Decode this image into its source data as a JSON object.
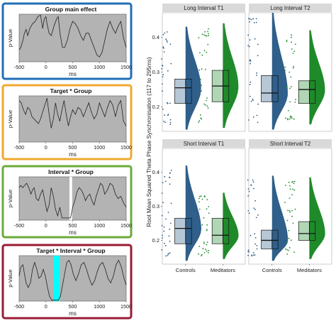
{
  "left_panels": [
    {
      "title": "Group main effect",
      "border_color": "#1f6fb5",
      "ylabel": "p-Value",
      "xlabel": "ms",
      "xticks": [
        "-500",
        "0",
        "500",
        "1000",
        "1500"
      ],
      "curve_x": [
        -500,
        -470,
        -430,
        -400,
        -370,
        -340,
        -300,
        -250,
        -200,
        -150,
        -100,
        -60,
        -30,
        0,
        20,
        60,
        100,
        150,
        200,
        230,
        270,
        310,
        350,
        400,
        450,
        500,
        550,
        600,
        650,
        700,
        750,
        800,
        850,
        900,
        950,
        1000,
        1050,
        1100,
        1150,
        1200,
        1250,
        1300,
        1350,
        1400,
        1450,
        1500
      ],
      "curve_y": [
        0.25,
        0.3,
        0.45,
        0.6,
        0.68,
        0.55,
        0.7,
        0.8,
        0.85,
        0.95,
        0.98,
        0.7,
        0.9,
        0.95,
        0.8,
        0.6,
        0.55,
        0.75,
        0.9,
        0.95,
        0.55,
        0.3,
        0.3,
        0.45,
        0.7,
        0.85,
        0.8,
        0.7,
        0.55,
        0.45,
        0.6,
        0.6,
        0.45,
        0.3,
        0.15,
        0.1,
        0.2,
        0.45,
        0.7,
        0.85,
        0.7,
        0.6,
        0.75,
        0.85,
        0.5,
        0.3
      ],
      "highlight": null
    },
    {
      "title": "Target * Group",
      "border_color": "#f0a830",
      "ylabel": "p-Value",
      "xlabel": "ms",
      "xticks": [
        "-500",
        "0",
        "500",
        "1000",
        "1500"
      ],
      "curve_x": [
        -500,
        -460,
        -420,
        -380,
        -340,
        -300,
        -260,
        -220,
        -180,
        -140,
        -100,
        -60,
        -20,
        20,
        60,
        100,
        140,
        180,
        220,
        260,
        300,
        340,
        380,
        420,
        460,
        500,
        550,
        600,
        650,
        700,
        750,
        800,
        850,
        900,
        950,
        1000,
        1050,
        1100,
        1150,
        1200,
        1250,
        1300,
        1350,
        1400,
        1450,
        1500
      ],
      "curve_y": [
        0.9,
        0.85,
        0.7,
        0.6,
        0.75,
        0.7,
        0.55,
        0.5,
        0.45,
        0.4,
        0.5,
        0.65,
        0.8,
        0.95,
        0.6,
        0.3,
        0.5,
        0.85,
        0.6,
        0.45,
        0.7,
        0.9,
        0.6,
        0.35,
        0.55,
        0.7,
        0.6,
        0.75,
        0.7,
        0.55,
        0.7,
        0.85,
        0.65,
        0.5,
        0.6,
        0.85,
        0.7,
        0.55,
        0.75,
        0.9,
        0.8,
        0.55,
        0.8,
        0.9,
        0.45,
        0.35
      ],
      "highlight": null
    },
    {
      "title": "Interval * Group",
      "border_color": "#6aab3a",
      "ylabel": "p-Value",
      "xlabel": "ms",
      "xticks": [
        "-500",
        "0",
        "500",
        "1000",
        "1500"
      ],
      "curve_x": [
        -500,
        -470,
        -430,
        -400,
        -360,
        -320,
        -280,
        -250,
        -220,
        -180,
        -140,
        -100,
        -60,
        -20,
        20,
        60,
        100,
        140,
        180,
        220,
        260,
        300,
        340,
        380,
        420,
        460,
        500,
        540,
        580,
        620,
        660,
        700,
        740,
        780,
        820,
        860,
        900,
        940,
        980,
        1020,
        1060,
        1100,
        1150,
        1200,
        1250,
        1300,
        1350,
        1400,
        1450,
        1500
      ],
      "curve_y": [
        0.75,
        0.8,
        0.75,
        0.8,
        0.85,
        0.75,
        0.6,
        0.7,
        0.75,
        0.5,
        0.45,
        0.6,
        0.7,
        0.45,
        0.2,
        0.35,
        0.75,
        0.55,
        0.25,
        0.1,
        0.3,
        0.05,
        0.05,
        0.05,
        0.05,
        0.05,
        0.3,
        0.45,
        0.65,
        0.75,
        0.7,
        0.6,
        0.45,
        0.55,
        0.6,
        0.45,
        0.35,
        0.55,
        0.7,
        0.85,
        0.8,
        0.6,
        0.7,
        0.85,
        0.8,
        0.6,
        0.5,
        0.55,
        0.4,
        0.3
      ],
      "highlight": {
        "x_start": 440,
        "x_end": 490,
        "color": "#ffffff"
      }
    },
    {
      "title": "Target * Interval * Group",
      "border_color": "#9a1b35",
      "ylabel": "p-Value",
      "xlabel": "ms",
      "xticks": [
        "-500",
        "0",
        "500",
        "1000",
        "1500"
      ],
      "curve_x": [
        -500,
        -470,
        -430,
        -400,
        -370,
        -330,
        -290,
        -250,
        -210,
        -170,
        -130,
        -90,
        -50,
        -10,
        30,
        70,
        110,
        150,
        190,
        230,
        270,
        310,
        350,
        390,
        430,
        470,
        510,
        560,
        610,
        660,
        710,
        760,
        810,
        860,
        910,
        960,
        1010,
        1060,
        1110,
        1160,
        1210,
        1260,
        1310,
        1360,
        1410,
        1460,
        1500
      ],
      "curve_y": [
        0.55,
        0.75,
        0.8,
        0.6,
        0.4,
        0.3,
        0.4,
        0.7,
        0.85,
        0.7,
        0.5,
        0.55,
        0.7,
        0.55,
        0.3,
        0.1,
        0.02,
        0.02,
        0.02,
        0.02,
        0.1,
        0.35,
        0.6,
        0.85,
        0.9,
        0.8,
        0.6,
        0.45,
        0.6,
        0.8,
        0.85,
        0.7,
        0.5,
        0.35,
        0.45,
        0.65,
        0.8,
        0.85,
        0.7,
        0.5,
        0.4,
        0.55,
        0.8,
        0.9,
        0.75,
        0.5,
        0.35
      ],
      "highlight": {
        "x_start": 140,
        "x_end": 260,
        "color": "#00ffff"
      }
    }
  ],
  "chart_data": {
    "type": "raincloud",
    "ylabel": "Root Mean Squared Theta Phase Synchronisation (117 to 295ms)",
    "groups": [
      "Controls",
      "Meditators"
    ],
    "colors": {
      "Controls": "#2f5f8a",
      "Meditators": "#1f8a2a"
    },
    "yticks": [
      "0.2",
      "0.3",
      "0.4"
    ],
    "ylim": [
      0.13,
      0.47
    ],
    "facets": [
      {
        "title": "Long Interval T1",
        "stats": [
          {
            "q1": 0.21,
            "median": 0.255,
            "q3": 0.28,
            "min": 0.135,
            "max": 0.43
          },
          {
            "q1": 0.215,
            "median": 0.26,
            "q3": 0.305,
            "min": 0.14,
            "max": 0.44
          }
        ]
      },
      {
        "title": "Long Interval T2",
        "stats": [
          {
            "q1": 0.215,
            "median": 0.24,
            "q3": 0.29,
            "min": 0.135,
            "max": 0.47
          },
          {
            "q1": 0.21,
            "median": 0.25,
            "q3": 0.275,
            "min": 0.15,
            "max": 0.42
          }
        ]
      },
      {
        "title": "Short Interval T1",
        "stats": [
          {
            "q1": 0.19,
            "median": 0.235,
            "q3": 0.265,
            "min": 0.14,
            "max": 0.42
          },
          {
            "q1": 0.19,
            "median": 0.215,
            "q3": 0.265,
            "min": 0.145,
            "max": 0.34
          }
        ]
      },
      {
        "title": "Short Interval T2",
        "stats": [
          {
            "q1": 0.175,
            "median": 0.2,
            "q3": 0.23,
            "min": 0.14,
            "max": 0.39
          },
          {
            "q1": 0.2,
            "median": 0.22,
            "q3": 0.255,
            "min": 0.145,
            "max": 0.385
          }
        ]
      }
    ]
  }
}
